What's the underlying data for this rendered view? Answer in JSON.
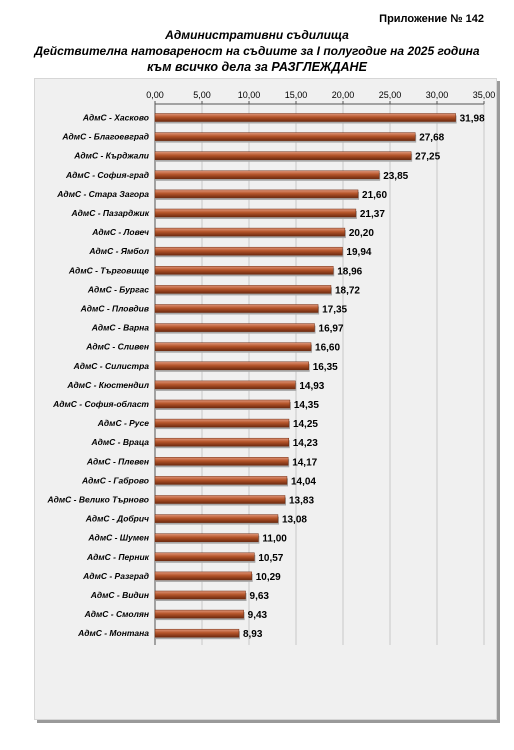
{
  "header": {
    "appendix": "Приложение № 142",
    "title": "Административни съдилища",
    "subtitle": "Действителна натовареност на съдиите за I полугодие на 2025 година",
    "subtitle2": "към всичко дела за РАЗГЛЕЖДАНЕ"
  },
  "colors": {
    "bar": "#b5552a",
    "bar_dark": "#6e2a0f",
    "bar_light": "#e0967a",
    "background": "#f0f0f0",
    "grid": "#c8c8c8"
  },
  "chart_data": {
    "type": "bar",
    "orientation": "horizontal",
    "title": "Административни съдилища",
    "xlim": [
      0,
      35
    ],
    "xticks": [
      "0,00",
      "5,00",
      "10,00",
      "15,00",
      "20,00",
      "25,00",
      "30,00",
      "35,00"
    ],
    "xtick_values": [
      0,
      5,
      10,
      15,
      20,
      25,
      30,
      35
    ],
    "axis_position": "top",
    "grid": true,
    "categories": [
      "АдмС - Хасково",
      "АдмС - Благоевград",
      "АдмС - Кърджали",
      "АдмС - София-град",
      "АдмС - Стара Загора",
      "АдмС - Пазарджик",
      "АдмС - Ловеч",
      "АдмС - Ямбол",
      "АдмС - Търговище",
      "АдмС - Бургас",
      "АдмС - Пловдив",
      "АдмС - Варна",
      "АдмС - Сливен",
      "АдмС - Силистра",
      "АдмС - Кюстендил",
      "АдмС - София-област",
      "АдмС - Русе",
      "АдмС - Враца",
      "АдмС - Плевен",
      "АдмС - Габрово",
      "АдмС - Велико Търново",
      "АдмС - Добрич",
      "АдмС - Шумен",
      "АдмС - Перник",
      "АдмС - Разград",
      "АдмС - Видин",
      "АдмС - Смолян",
      "АдмС - Монтана"
    ],
    "values": [
      31.98,
      27.68,
      27.25,
      23.85,
      21.6,
      21.37,
      20.2,
      19.94,
      18.96,
      18.72,
      17.35,
      16.97,
      16.6,
      16.35,
      14.93,
      14.35,
      14.25,
      14.23,
      14.17,
      14.04,
      13.83,
      13.08,
      11.0,
      10.57,
      10.29,
      9.63,
      9.43,
      8.93
    ],
    "labels": [
      "31,98",
      "27,68",
      "27,25",
      "23,85",
      "21,60",
      "21,37",
      "20,20",
      "19,94",
      "18,96",
      "18,72",
      "17,35",
      "16,97",
      "16,60",
      "16,35",
      "14,93",
      "14,35",
      "14,25",
      "14,23",
      "14,17",
      "14,04",
      "13,83",
      "13,08",
      "11,00",
      "10,57",
      "10,29",
      "9,63",
      "9,43",
      "8,93"
    ]
  }
}
